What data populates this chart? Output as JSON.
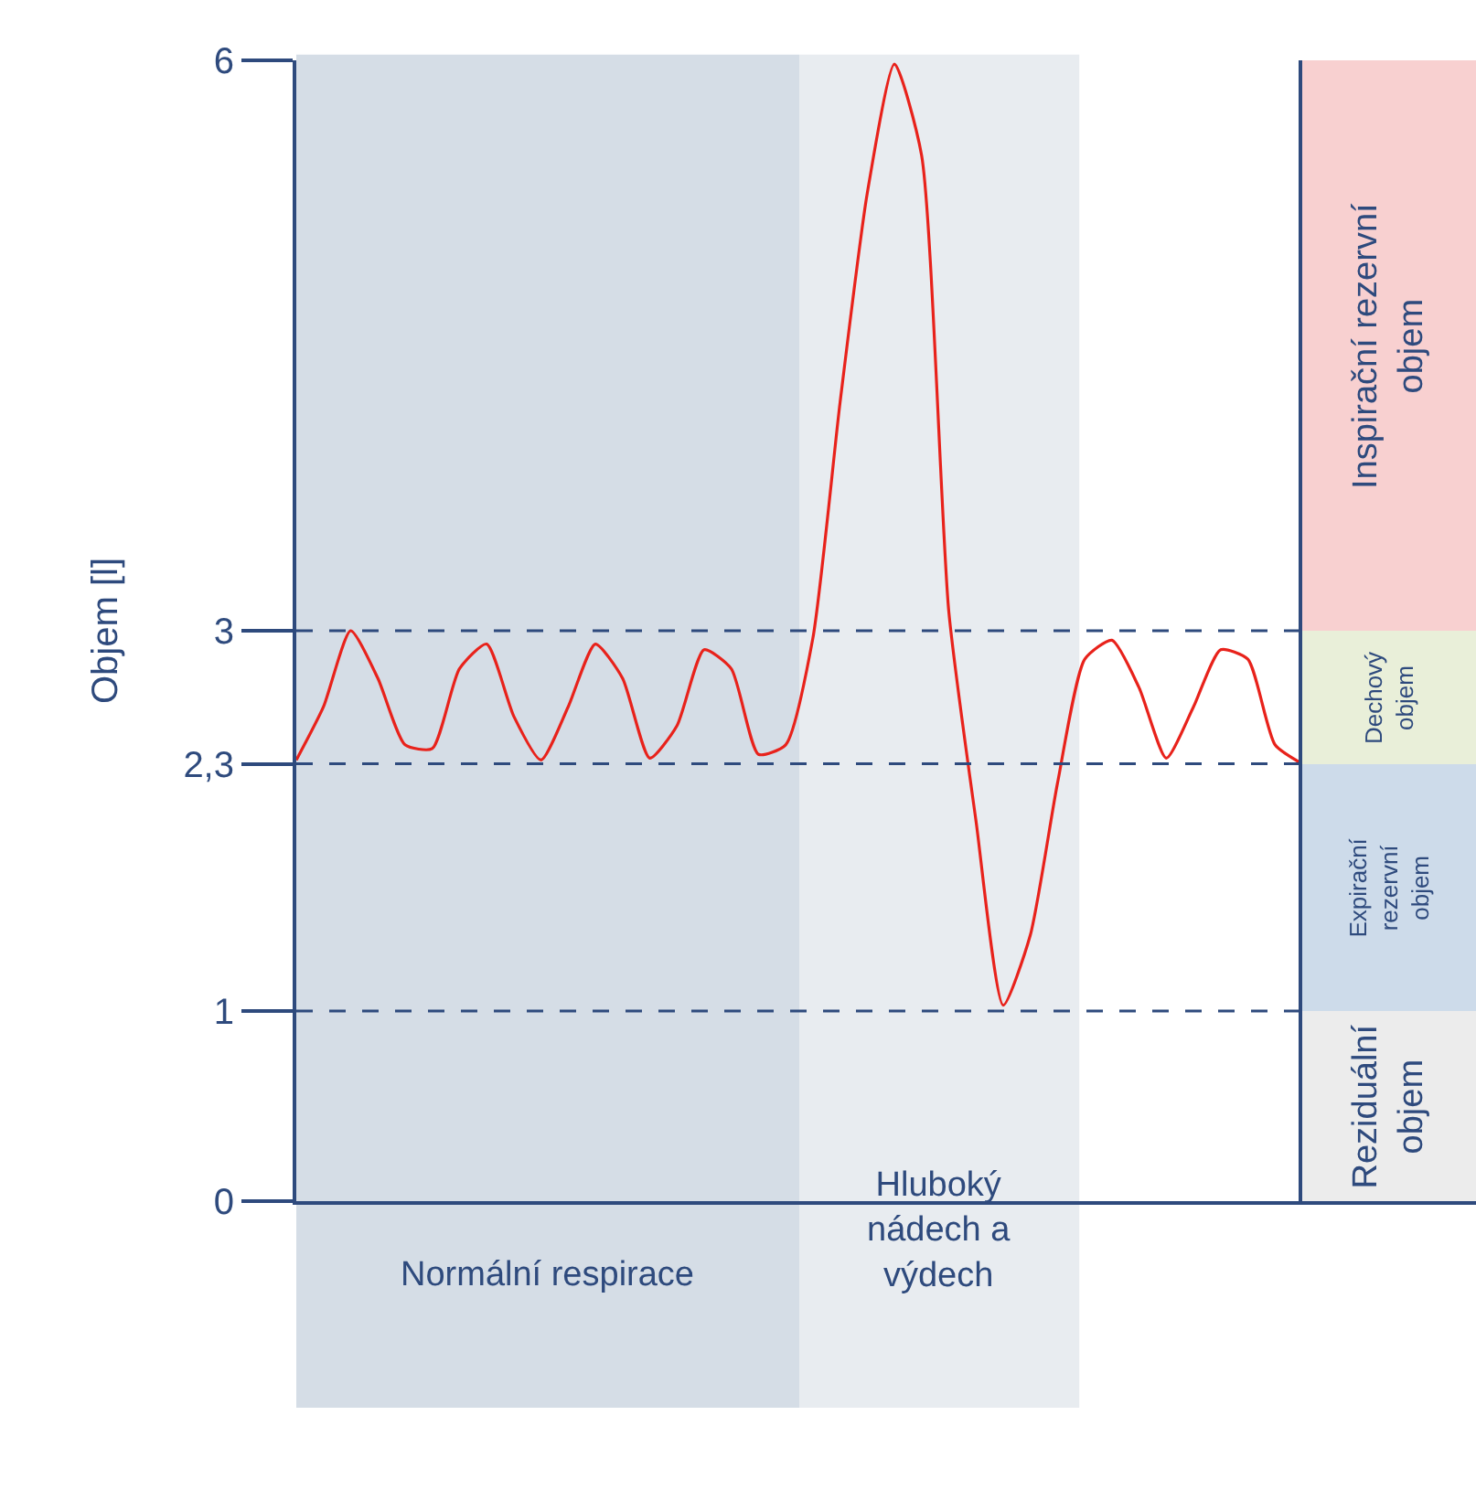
{
  "chart_data": [
    {
      "type": "line",
      "ylabel": "Objem [l]",
      "categories": [
        null,
        null,
        null,
        null,
        null,
        null,
        null,
        null,
        null,
        null,
        null,
        null,
        null,
        null,
        null,
        null,
        null,
        null,
        null,
        null,
        null,
        null,
        null,
        null,
        null,
        null,
        null,
        null,
        null,
        null,
        null,
        null,
        null,
        null,
        null,
        null,
        null,
        null
      ],
      "series": [
        {
          "color": "#e8221b",
          "values": [
            2.32,
            2.6,
            3.0,
            2.75,
            2.4,
            2.38,
            2.8,
            2.93,
            2.55,
            2.32,
            2.6,
            2.93,
            2.75,
            2.33,
            2.5,
            2.9,
            2.8,
            2.35,
            2.4,
            2.96,
            4.2,
            5.3,
            5.98,
            5.5,
            3.1,
            2.0,
            1.03,
            1.4,
            2.2,
            2.85,
            2.95,
            2.7,
            2.33,
            2.6,
            2.9,
            2.85,
            2.4,
            2.3
          ]
        }
      ],
      "ylim": [
        0,
        6
      ],
      "yticks": [
        0,
        1,
        {
          "value": 2.3,
          "label": "2,3"
        },
        3,
        6
      ],
      "tick_labels": "y",
      "grid": false,
      "legend": false,
      "marker": "none",
      "line_style": "solid",
      "annotations": [
        "Normální respirace",
        "Hluboký\nnádech a\nvýdech"
      ],
      "ref_lines": [
        {
          "axis": "y",
          "value": 3,
          "color": "#2e4a7d",
          "line_style": "dashed"
        },
        {
          "axis": "y",
          "value": 2.3,
          "color": "#2e4a7d",
          "line_style": "dashed"
        },
        {
          "axis": "y",
          "value": 1,
          "color": "#2e4a7d",
          "line_style": "dashed"
        }
      ]
    },
    {
      "type": "bar",
      "stacked": true,
      "categories": [
        null
      ],
      "ylim": [
        0,
        6
      ],
      "tick_labels": false,
      "legend": false,
      "series": [
        {
          "name": "Reziduální\nobjem",
          "color": "#ececec",
          "values": [
            1
          ]
        },
        {
          "name": "Expirační\nrezervní\nobjem",
          "color": "#cddbea",
          "values": [
            1.3
          ]
        },
        {
          "name": "Dechový\nobjem",
          "color": "#e9efd9",
          "values": [
            0.7
          ]
        },
        {
          "name": "Inspirační rezervní\nobjem",
          "color": "#f8d0d0",
          "values": [
            3
          ]
        }
      ]
    }
  ]
}
